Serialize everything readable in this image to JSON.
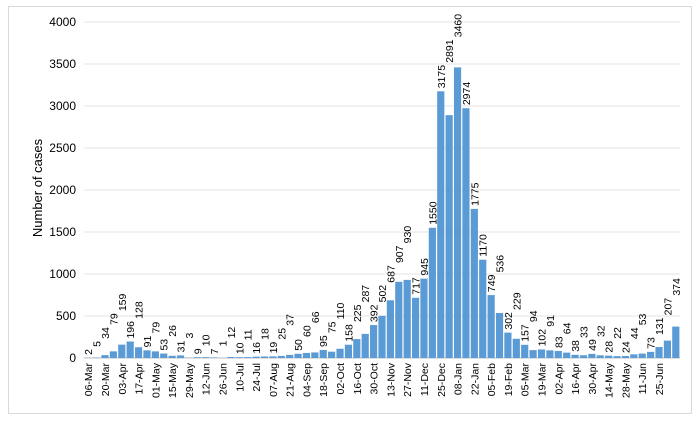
{
  "chart_data": {
    "type": "bar",
    "title": "",
    "xlabel": "",
    "ylabel": "Number of cases",
    "ylim": [
      0,
      4000
    ],
    "yticks": [
      0,
      500,
      1000,
      1500,
      2000,
      2500,
      3000,
      3500,
      4000
    ],
    "grid": true,
    "bar_color": "#5b9bd5",
    "tick_labels": [
      "06-Mar",
      "20-Mar",
      "03-Apr",
      "17-Apr",
      "01-May",
      "15-May",
      "29-May",
      "12-Jun",
      "26-Jun",
      "10-Jul",
      "24-Jul",
      "07-Aug",
      "21-Aug",
      "04-Sep",
      "18-Sep",
      "02-Oct",
      "16-Oct",
      "30-Oct",
      "13-Nov",
      "27-Nov",
      "11-Dec",
      "25-Dec",
      "08-Jan",
      "22-Jan",
      "05-Feb",
      "19-Feb",
      "05-Mar",
      "19-Mar",
      "02-Apr",
      "16-Apr",
      "30-Apr",
      "14-May",
      "28-May",
      "11-Jun",
      "25-Jun"
    ],
    "values": [
      2,
      5,
      34,
      79,
      159,
      196,
      128,
      91,
      79,
      53,
      26,
      31,
      3,
      9,
      10,
      7,
      1,
      12,
      10,
      11,
      16,
      18,
      19,
      25,
      37,
      50,
      60,
      66,
      95,
      75,
      110,
      158,
      225,
      287,
      392,
      502,
      687,
      907,
      930,
      717,
      945,
      1550,
      3175,
      2891,
      3460,
      2974,
      1775,
      1170,
      749,
      536,
      302,
      229,
      157,
      94,
      102,
      91,
      83,
      64,
      38,
      33,
      49,
      32,
      28,
      22,
      24,
      44,
      53,
      73,
      131,
      207,
      374
    ]
  }
}
